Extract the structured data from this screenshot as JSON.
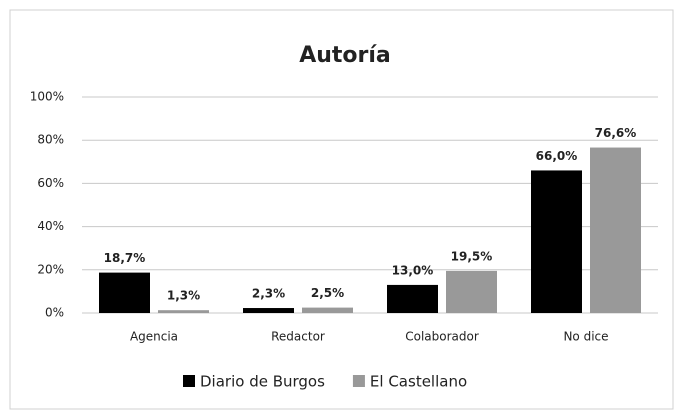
{
  "chart_data": {
    "type": "bar",
    "title": "Autoría",
    "categories": [
      "Agencia",
      "Redactor",
      "Colaborador",
      "No dice"
    ],
    "series": [
      {
        "name": "Diario de Burgos",
        "color": "#000000",
        "values": [
          18.7,
          2.3,
          13.0,
          66.0
        ],
        "value_labels": [
          "18,7%",
          "2,3%",
          "13,0%",
          "66,0%"
        ]
      },
      {
        "name": "El Castellano",
        "color": "#999999",
        "values": [
          1.3,
          2.5,
          19.5,
          76.6
        ],
        "value_labels": [
          "1,3%",
          "2,5%",
          "19,5%",
          "76,6%"
        ]
      }
    ],
    "ylim": [
      0,
      100
    ],
    "yticks": [
      {
        "value": 0,
        "label": "0%"
      },
      {
        "value": 20,
        "label": "20%"
      },
      {
        "value": 40,
        "label": "40%"
      },
      {
        "value": 60,
        "label": "60%"
      },
      {
        "value": 80,
        "label": "80%"
      },
      {
        "value": 100,
        "label": "100%"
      }
    ],
    "grid": true,
    "legend": "bottom"
  }
}
